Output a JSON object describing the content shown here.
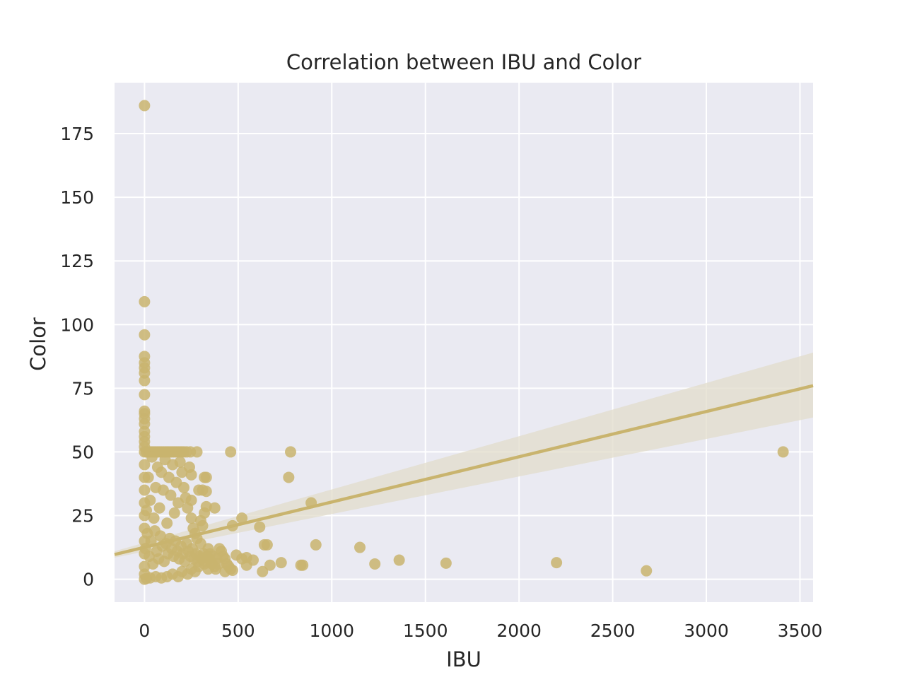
{
  "colors": {
    "plot_background": "#EAEAF2",
    "grid": "#FFFFFF",
    "points": "#C9B46E",
    "regression_line": "#C9B46E",
    "confidence_band": "#E2DCCB",
    "text": "#262626"
  },
  "chart_data": {
    "type": "scatter",
    "title": "Correlation between IBU and Color",
    "xlabel": "IBU",
    "ylabel": "Color",
    "xlim": [
      -160,
      3570
    ],
    "ylim": [
      -9,
      195
    ],
    "xticks": [
      0,
      500,
      1000,
      1500,
      2000,
      2500,
      3000,
      3500
    ],
    "yticks": [
      0,
      25,
      50,
      75,
      100,
      125,
      150,
      175
    ],
    "grid": true,
    "legend": "none",
    "regression": {
      "line": [
        [
          -160,
          9.7
        ],
        [
          3570,
          76
        ]
      ],
      "ci_lower": [
        [
          -160,
          8.5
        ],
        [
          3570,
          63.5
        ]
      ],
      "ci_upper": [
        [
          -160,
          11.0
        ],
        [
          3570,
          89.0
        ]
      ]
    },
    "points": [
      [
        0,
        186
      ],
      [
        0,
        109
      ],
      [
        0,
        96
      ],
      [
        0,
        87.5
      ],
      [
        0,
        85
      ],
      [
        0,
        83
      ],
      [
        0,
        81
      ],
      [
        0,
        78
      ],
      [
        0,
        72.5
      ],
      [
        0,
        66
      ],
      [
        0,
        65
      ],
      [
        0,
        63
      ],
      [
        0,
        61
      ],
      [
        0,
        58
      ],
      [
        0,
        56
      ],
      [
        0,
        54
      ],
      [
        0,
        52
      ],
      [
        0,
        50
      ],
      [
        10,
        50
      ],
      [
        20,
        50
      ],
      [
        30,
        50
      ],
      [
        40,
        50
      ],
      [
        50,
        50
      ],
      [
        60,
        50
      ],
      [
        70,
        50
      ],
      [
        80,
        50
      ],
      [
        90,
        50
      ],
      [
        100,
        50
      ],
      [
        110,
        50
      ],
      [
        120,
        50
      ],
      [
        130,
        50
      ],
      [
        140,
        50
      ],
      [
        150,
        50
      ],
      [
        160,
        50
      ],
      [
        170,
        50
      ],
      [
        180,
        50
      ],
      [
        190,
        50
      ],
      [
        200,
        50
      ],
      [
        210,
        50
      ],
      [
        225,
        50
      ],
      [
        245,
        50
      ],
      [
        280,
        50
      ],
      [
        460,
        50
      ],
      [
        780,
        50
      ],
      [
        3410,
        50
      ],
      [
        240,
        44
      ],
      [
        250,
        41
      ],
      [
        320,
        40
      ],
      [
        330,
        40
      ],
      [
        770,
        40
      ],
      [
        290,
        35
      ],
      [
        310,
        35
      ],
      [
        330,
        34.5
      ],
      [
        890,
        30
      ],
      [
        330,
        28.5
      ],
      [
        375,
        28
      ],
      [
        250,
        31
      ],
      [
        320,
        26
      ],
      [
        300,
        23
      ],
      [
        310,
        21
      ],
      [
        520,
        24
      ],
      [
        470,
        21
      ],
      [
        615,
        20.5
      ],
      [
        640,
        13.5
      ],
      [
        655,
        13.5
      ],
      [
        915,
        13.5
      ],
      [
        1150,
        12.5
      ],
      [
        490,
        9.5
      ],
      [
        520,
        8
      ],
      [
        545,
        8.5
      ],
      [
        580,
        7.5
      ],
      [
        545,
        5.5
      ],
      [
        670,
        5.5
      ],
      [
        730,
        6.5
      ],
      [
        835,
        5.5
      ],
      [
        845,
        5.5
      ],
      [
        1230,
        6
      ],
      [
        1360,
        7.5
      ],
      [
        1610,
        6.3
      ],
      [
        2200,
        6.5
      ],
      [
        2680,
        3.3
      ],
      [
        630,
        3
      ],
      [
        400,
        12
      ],
      [
        410,
        11
      ],
      [
        420,
        9
      ],
      [
        430,
        8
      ],
      [
        440,
        6
      ],
      [
        450,
        5
      ],
      [
        460,
        4
      ],
      [
        470,
        3.5
      ],
      [
        430,
        3
      ],
      [
        380,
        4
      ],
      [
        360,
        6
      ],
      [
        350,
        10
      ],
      [
        340,
        12
      ],
      [
        300,
        14
      ],
      [
        280,
        16
      ],
      [
        260,
        20
      ],
      [
        270,
        18
      ],
      [
        250,
        24
      ],
      [
        230,
        28
      ],
      [
        220,
        32
      ],
      [
        210,
        36
      ],
      [
        200,
        42
      ],
      [
        190,
        46
      ],
      [
        180,
        30
      ],
      [
        170,
        38
      ],
      [
        160,
        26
      ],
      [
        150,
        45
      ],
      [
        140,
        33
      ],
      [
        130,
        40
      ],
      [
        120,
        22
      ],
      [
        110,
        47
      ],
      [
        100,
        35
      ],
      [
        90,
        42
      ],
      [
        80,
        28
      ],
      [
        70,
        44
      ],
      [
        60,
        36
      ],
      [
        50,
        24
      ],
      [
        40,
        48
      ],
      [
        30,
        31
      ],
      [
        20,
        40
      ],
      [
        10,
        27
      ],
      [
        150,
        2
      ],
      [
        180,
        1
      ],
      [
        200,
        3
      ],
      [
        230,
        2
      ],
      [
        250,
        4
      ],
      [
        270,
        3
      ],
      [
        290,
        5
      ],
      [
        320,
        6
      ],
      [
        340,
        4
      ],
      [
        120,
        1
      ],
      [
        90,
        0.5
      ],
      [
        60,
        1
      ],
      [
        30,
        0.5
      ],
      [
        10,
        0.3
      ],
      [
        0,
        0
      ],
      [
        0,
        2
      ],
      [
        0,
        5
      ],
      [
        0,
        10
      ],
      [
        0,
        15
      ],
      [
        0,
        20
      ],
      [
        0,
        25
      ],
      [
        0,
        30
      ],
      [
        0,
        35
      ],
      [
        0,
        40
      ],
      [
        0,
        45
      ],
      [
        5,
        12
      ],
      [
        15,
        18
      ],
      [
        25,
        9
      ],
      [
        35,
        15
      ],
      [
        45,
        6
      ],
      [
        55,
        19
      ],
      [
        65,
        11
      ],
      [
        75,
        8
      ],
      [
        85,
        17
      ],
      [
        95,
        13
      ],
      [
        105,
        7
      ],
      [
        115,
        14
      ],
      [
        125,
        10
      ],
      [
        135,
        16
      ],
      [
        145,
        12
      ],
      [
        155,
        9
      ],
      [
        165,
        15
      ],
      [
        175,
        11
      ],
      [
        185,
        8
      ],
      [
        195,
        13
      ],
      [
        205,
        10
      ],
      [
        215,
        7
      ],
      [
        225,
        14
      ],
      [
        235,
        11
      ],
      [
        245,
        9
      ],
      [
        255,
        12
      ],
      [
        265,
        8
      ],
      [
        275,
        10
      ],
      [
        285,
        7
      ],
      [
        295,
        9
      ],
      [
        305,
        8
      ],
      [
        315,
        10
      ],
      [
        325,
        7
      ],
      [
        335,
        9
      ],
      [
        345,
        8
      ],
      [
        355,
        7
      ],
      [
        365,
        9
      ],
      [
        375,
        5
      ],
      [
        385,
        8
      ],
      [
        395,
        6
      ]
    ]
  }
}
